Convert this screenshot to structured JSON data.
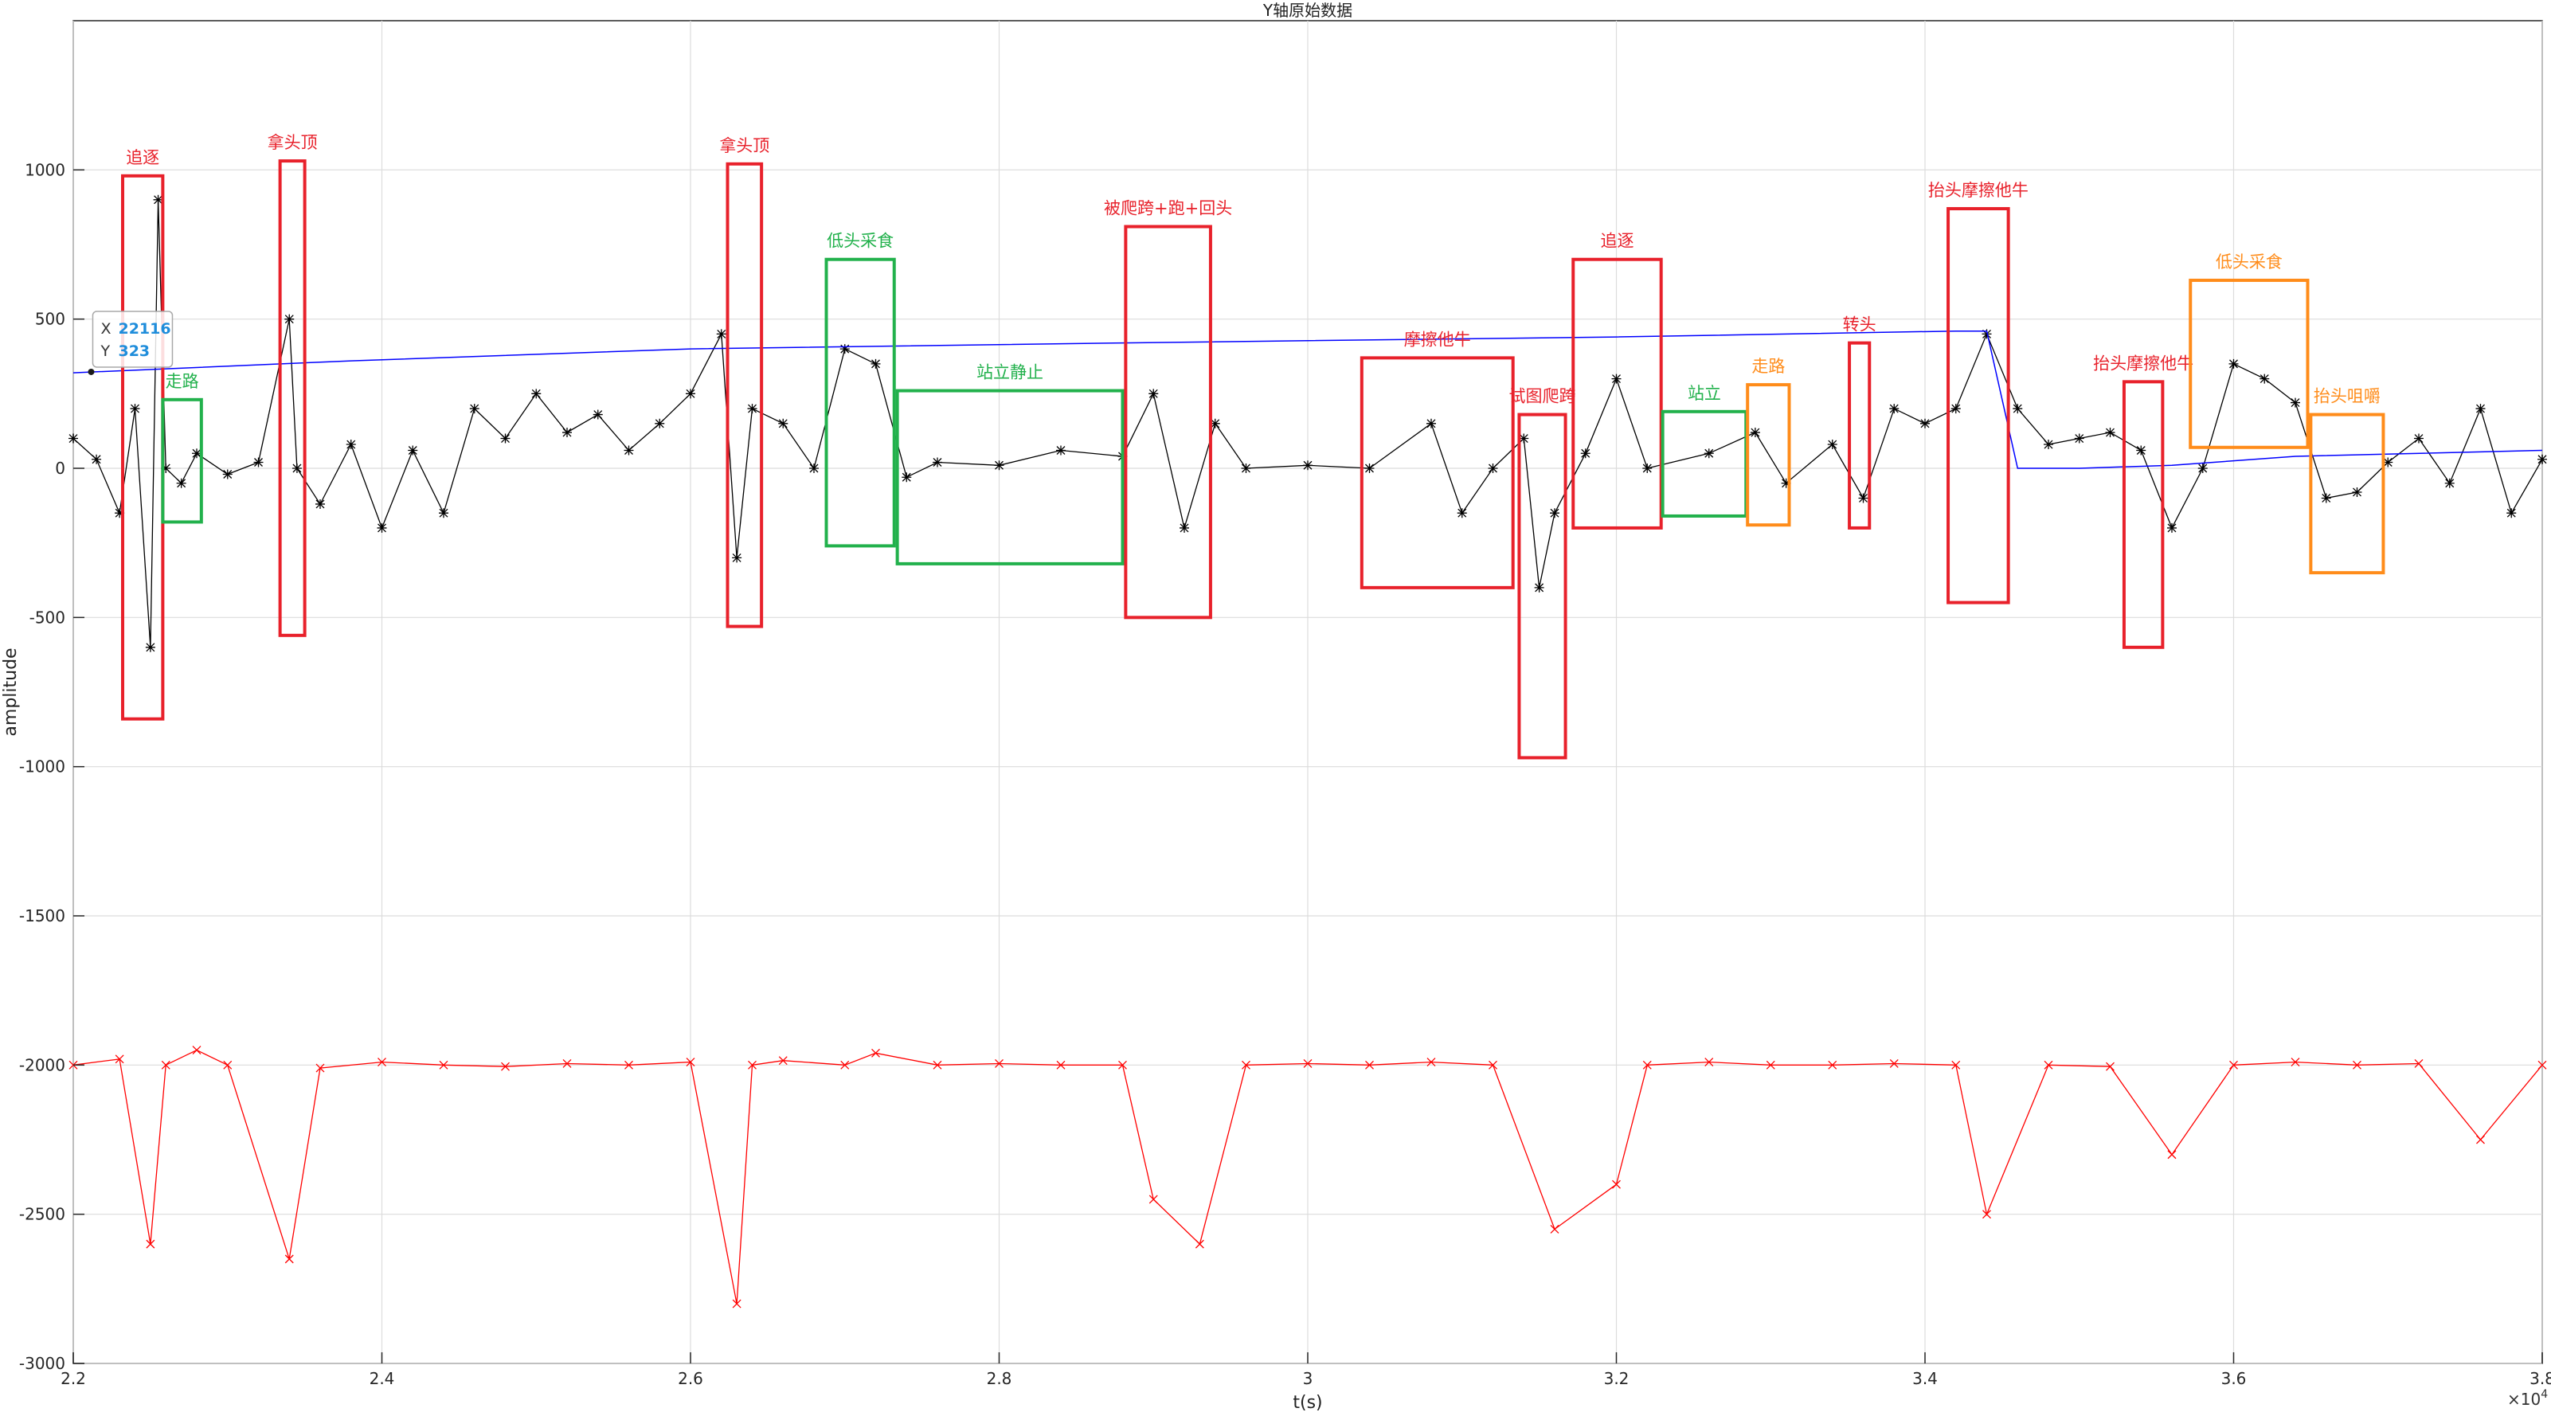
{
  "chart_data": {
    "type": "line",
    "title": "Y轴原始数据",
    "xlabel": "t(s)",
    "ylabel": "amplitude",
    "x_exponent_label": "×10",
    "x_exponent_power": "4",
    "xlim": [
      2.2,
      3.8
    ],
    "ylim": [
      -3000,
      1500
    ],
    "grid": true,
    "x_ticks": [
      2.2,
      2.4,
      2.6,
      2.8,
      3.0,
      3.2,
      3.4,
      3.6,
      3.8
    ],
    "x_tick_labels": [
      "2.2",
      "2.4",
      "2.6",
      "2.8",
      "3",
      "3.2",
      "3.4",
      "3.6",
      "3.8"
    ],
    "y_ticks": [
      1000,
      500,
      0,
      -500,
      -1000,
      -1500,
      -2000,
      -2500,
      -3000
    ],
    "y_tick_labels": [
      "1000",
      "500",
      "0",
      "-500",
      "-1000",
      "-1500",
      "-2000",
      "-2500",
      "-3000"
    ],
    "series": [
      {
        "color": "#000000",
        "marker": "asterisk",
        "x": [
          2.2,
          2.215,
          2.23,
          2.24,
          2.25,
          2.255,
          2.26,
          2.27,
          2.28,
          2.3,
          2.32,
          2.34,
          2.345,
          2.36,
          2.38,
          2.4,
          2.42,
          2.44,
          2.46,
          2.48,
          2.5,
          2.52,
          2.54,
          2.56,
          2.58,
          2.6,
          2.62,
          2.63,
          2.64,
          2.66,
          2.68,
          2.7,
          2.72,
          2.74,
          2.76,
          2.8,
          2.84,
          2.88,
          2.9,
          2.92,
          2.94,
          2.96,
          3.0,
          3.04,
          3.08,
          3.1,
          3.12,
          3.14,
          3.15,
          3.16,
          3.18,
          3.2,
          3.22,
          3.26,
          3.29,
          3.31,
          3.34,
          3.36,
          3.38,
          3.4,
          3.42,
          3.44,
          3.46,
          3.48,
          3.5,
          3.52,
          3.54,
          3.56,
          3.58,
          3.6,
          3.62,
          3.64,
          3.66,
          3.68,
          3.7,
          3.72,
          3.74,
          3.76,
          3.78,
          3.8
        ],
        "y": [
          100,
          30,
          -150,
          200,
          -600,
          900,
          0,
          -50,
          50,
          -20,
          20,
          500,
          0,
          -120,
          80,
          -200,
          60,
          -150,
          200,
          100,
          250,
          120,
          180,
          60,
          150,
          250,
          450,
          -300,
          200,
          150,
          0,
          400,
          350,
          -30,
          20,
          10,
          60,
          40,
          250,
          -200,
          150,
          0,
          10,
          0,
          150,
          -150,
          0,
          100,
          -400,
          -150,
          50,
          300,
          0,
          50,
          120,
          -50,
          80,
          -100,
          200,
          150,
          200,
          450,
          200,
          80,
          100,
          120,
          60,
          -200,
          0,
          350,
          300,
          220,
          -100,
          -80,
          20,
          100,
          -50,
          200,
          -150,
          30
        ]
      },
      {
        "color": "#0000ff",
        "marker": "none",
        "x": [
          2.2,
          2.38,
          2.6,
          2.88,
          3.2,
          3.42,
          3.44,
          3.46,
          3.5,
          3.56,
          3.64,
          3.8
        ],
        "y": [
          320,
          360,
          400,
          420,
          440,
          460,
          460,
          0,
          0,
          10,
          40,
          60
        ]
      },
      {
        "color": "#ff0000",
        "marker": "x",
        "x": [
          2.2,
          2.23,
          2.25,
          2.26,
          2.28,
          2.3,
          2.34,
          2.36,
          2.4,
          2.44,
          2.48,
          2.52,
          2.56,
          2.6,
          2.63,
          2.64,
          2.66,
          2.7,
          2.72,
          2.76,
          2.8,
          2.84,
          2.88,
          2.9,
          2.93,
          2.96,
          3.0,
          3.04,
          3.08,
          3.12,
          3.16,
          3.2,
          3.22,
          3.26,
          3.3,
          3.34,
          3.38,
          3.42,
          3.44,
          3.48,
          3.52,
          3.56,
          3.6,
          3.64,
          3.68,
          3.72,
          3.76,
          3.8
        ],
        "y": [
          -2000,
          -1980,
          -2600,
          -2000,
          -1950,
          -2000,
          -2650,
          -2010,
          -1990,
          -2000,
          -2005,
          -1995,
          -2000,
          -1990,
          -2800,
          -2000,
          -1985,
          -2000,
          -1960,
          -2000,
          -1995,
          -2000,
          -2000,
          -2450,
          -2600,
          -2000,
          -1995,
          -2000,
          -1990,
          -2000,
          -2550,
          -2400,
          -2000,
          -1990,
          -2000,
          -2000,
          -1995,
          -2000,
          -2500,
          -2000,
          -2005,
          -2300,
          -2000,
          -1990,
          -2000,
          -1995,
          -2250,
          -2000
        ]
      }
    ],
    "annotations": [
      {
        "text": "追逐",
        "color": "#e8212b",
        "box": [
          [
            2.232,
            2.258
          ],
          [
            -840,
            980
          ]
        ]
      },
      {
        "text": "走路",
        "color": "#22b14c",
        "box": [
          [
            2.258,
            2.283
          ],
          [
            -180,
            230
          ]
        ]
      },
      {
        "text": "拿头顶",
        "color": "#e8212b",
        "box": [
          [
            2.334,
            2.35
          ],
          [
            -560,
            1030
          ]
        ]
      },
      {
        "text": "拿头顶",
        "color": "#e8212b",
        "box": [
          [
            2.624,
            2.646
          ],
          [
            -530,
            1020
          ]
        ]
      },
      {
        "text": "低头采食",
        "color": "#22b14c",
        "box": [
          [
            2.688,
            2.732
          ],
          [
            -260,
            700
          ]
        ]
      },
      {
        "text": "站立静止",
        "color": "#22b14c",
        "box": [
          [
            2.734,
            2.88
          ],
          [
            -320,
            260
          ]
        ]
      },
      {
        "text": "被爬跨+跑+回头",
        "color": "#e8212b",
        "box": [
          [
            2.882,
            2.937
          ],
          [
            -500,
            810
          ]
        ]
      },
      {
        "text": "摩擦他牛",
        "color": "#e8212b",
        "box": [
          [
            3.035,
            3.133
          ],
          [
            -400,
            370
          ]
        ]
      },
      {
        "text": "试图爬跨",
        "color": "#e8212b",
        "box": [
          [
            3.137,
            3.167
          ],
          [
            -970,
            180
          ]
        ]
      },
      {
        "text": "追逐",
        "color": "#e8212b",
        "box": [
          [
            3.172,
            3.229
          ],
          [
            -200,
            700
          ]
        ]
      },
      {
        "text": "站立",
        "color": "#22b14c",
        "box": [
          [
            3.23,
            3.284
          ],
          [
            -160,
            190
          ]
        ]
      },
      {
        "text": "走路",
        "color": "#ff8c1a",
        "box": [
          [
            3.285,
            3.312
          ],
          [
            -190,
            280
          ]
        ]
      },
      {
        "text": "转头",
        "color": "#e8212b",
        "box": [
          [
            3.351,
            3.364
          ],
          [
            -200,
            420
          ]
        ]
      },
      {
        "text": "抬头摩擦他牛",
        "color": "#e8212b",
        "box": [
          [
            3.415,
            3.454
          ],
          [
            -450,
            870
          ]
        ]
      },
      {
        "text": "抬头摩擦他牛",
        "color": "#e8212b",
        "box": [
          [
            3.529,
            3.554
          ],
          [
            -600,
            290
          ]
        ]
      },
      {
        "text": "低头采食",
        "color": "#ff8c1a",
        "box": [
          [
            3.572,
            3.648
          ],
          [
            70,
            630
          ]
        ]
      },
      {
        "text": "抬头咀嚼",
        "color": "#ff8c1a",
        "box": [
          [
            3.65,
            3.697
          ],
          [
            -350,
            180
          ]
        ]
      }
    ],
    "datatip": {
      "x_label": "X",
      "x_value": "22116",
      "y_label": "Y",
      "y_value": "323"
    }
  }
}
